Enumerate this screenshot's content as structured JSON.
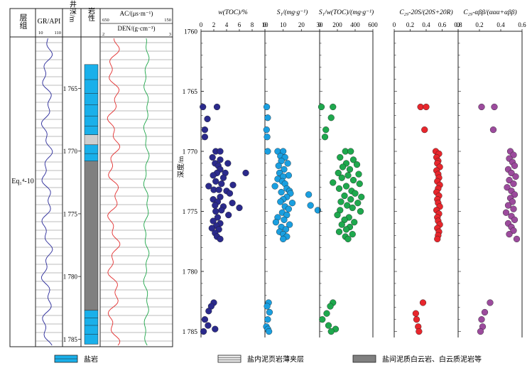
{
  "log": {
    "headers": {
      "formation": "层组",
      "gr": "GR/API",
      "gr_min": "10",
      "gr_max": "110",
      "depth": "井深/m",
      "lithology": "岩性",
      "ac": "AC/(μs·m⁻¹)",
      "ac_min": "650",
      "ac_max": "150",
      "den": "DEN/(g·cm⁻³)",
      "den_min": "2",
      "den_max": "3"
    },
    "formation_name": "Eq₁⁴-10",
    "depth_ticks": [
      "1 765",
      "1 770",
      "1 775",
      "1 780",
      "1 785"
    ]
  },
  "legend": {
    "salt": "盐岩",
    "shale": "盐内泥页岩薄夹层",
    "mudstone": "盐间泥质白云岩、白云质泥岩等"
  },
  "colors": {
    "salt": "#1ab0ea",
    "mudstone": "#808080",
    "gr_curve": "#2a2a9a",
    "ac_curve": "#e33030",
    "den_curve": "#1fa64a",
    "toc": "#2b2a8c",
    "s1": "#1a9fe0",
    "oi": "#1ea84d",
    "c29s": "#e8262c",
    "c29b": "#9c4b9d"
  },
  "chart_data": {
    "type": "scatter",
    "ylabel": "深度/m",
    "y_ticks": [
      "1760",
      "1 765",
      "1 770",
      "1 775",
      "1 780",
      "1 785"
    ],
    "ylim": [
      1760,
      1785.5
    ],
    "y_inverted": true,
    "panels": [
      {
        "key": "toc",
        "title": "w(TOC)/%",
        "xlim": [
          0,
          10
        ],
        "x_ticks": [
          "0",
          "2",
          "4",
          "6",
          "8",
          "10"
        ],
        "points": [
          [
            0.3,
            1766.3
          ],
          [
            2.5,
            1766.3
          ],
          [
            1.0,
            1767.3
          ],
          [
            0.6,
            1768.2
          ],
          [
            0.6,
            1768.8
          ],
          [
            2.3,
            1770.0
          ],
          [
            3.0,
            1770.0
          ],
          [
            1.8,
            1770.5
          ],
          [
            3.0,
            1770.7
          ],
          [
            2.2,
            1771.0
          ],
          [
            4.2,
            1771.0
          ],
          [
            2.7,
            1771.2
          ],
          [
            3.0,
            1771.5
          ],
          [
            2.5,
            1771.8
          ],
          [
            7.0,
            1771.8
          ],
          [
            3.8,
            1771.8
          ],
          [
            1.9,
            1772.0
          ],
          [
            3.5,
            1772.2
          ],
          [
            2.3,
            1772.5
          ],
          [
            3.2,
            1772.7
          ],
          [
            5.0,
            1772.8
          ],
          [
            1.2,
            1772.9
          ],
          [
            2.0,
            1773.2
          ],
          [
            2.8,
            1773.2
          ],
          [
            4.0,
            1773.3
          ],
          [
            4.5,
            1773.5
          ],
          [
            3.0,
            1773.8
          ],
          [
            1.9,
            1774.0
          ],
          [
            2.6,
            1774.2
          ],
          [
            4.9,
            1774.3
          ],
          [
            2.2,
            1774.5
          ],
          [
            3.5,
            1774.6
          ],
          [
            6.0,
            1774.7
          ],
          [
            3.2,
            1774.9
          ],
          [
            2.3,
            1775.0
          ],
          [
            4.3,
            1775.3
          ],
          [
            2.6,
            1775.5
          ],
          [
            1.9,
            1775.8
          ],
          [
            3.0,
            1776.0
          ],
          [
            2.4,
            1776.2
          ],
          [
            1.7,
            1776.4
          ],
          [
            2.8,
            1776.5
          ],
          [
            2.2,
            1776.8
          ],
          [
            2.5,
            1777.1
          ],
          [
            3.0,
            1777.3
          ],
          [
            2.0,
            1782.6
          ],
          [
            1.6,
            1782.9
          ],
          [
            1.2,
            1783.3
          ],
          [
            0.6,
            1784.0
          ],
          [
            1.1,
            1784.5
          ],
          [
            2.2,
            1784.8
          ],
          [
            0.4,
            1785.0
          ]
        ]
      },
      {
        "key": "s1",
        "title": "S₁/(mg·g⁻¹)",
        "xlim": [
          0,
          30
        ],
        "x_ticks": [
          "0",
          "10",
          "20",
          "30"
        ],
        "points": [
          [
            1.0,
            1766.3
          ],
          [
            1.5,
            1767.2
          ],
          [
            0.9,
            1768.2
          ],
          [
            1.2,
            1768.8
          ],
          [
            7.0,
            1770.0
          ],
          [
            10.0,
            1770.0
          ],
          [
            1.5,
            1770.0
          ],
          [
            8.5,
            1770.4
          ],
          [
            11.0,
            1770.5
          ],
          [
            9.0,
            1770.8
          ],
          [
            12.5,
            1771.0
          ],
          [
            7.5,
            1771.2
          ],
          [
            10.5,
            1771.5
          ],
          [
            8.0,
            1771.8
          ],
          [
            13.0,
            1772.0
          ],
          [
            10.0,
            1772.1
          ],
          [
            7.0,
            1772.3
          ],
          [
            9.5,
            1772.5
          ],
          [
            11.0,
            1772.7
          ],
          [
            5.5,
            1772.9
          ],
          [
            12.0,
            1773.1
          ],
          [
            13.5,
            1773.3
          ],
          [
            9.0,
            1773.4
          ],
          [
            14.0,
            1773.5
          ],
          [
            24.0,
            1773.6
          ],
          [
            12.0,
            1773.8
          ],
          [
            10.0,
            1774.0
          ],
          [
            8.5,
            1774.2
          ],
          [
            15.0,
            1774.3
          ],
          [
            25.0,
            1774.5
          ],
          [
            11.0,
            1774.6
          ],
          [
            13.0,
            1774.8
          ],
          [
            29.0,
            1774.9
          ],
          [
            9.5,
            1775.1
          ],
          [
            12.0,
            1775.3
          ],
          [
            7.0,
            1775.5
          ],
          [
            10.5,
            1775.7
          ],
          [
            6.0,
            1775.9
          ],
          [
            13.5,
            1776.1
          ],
          [
            9.0,
            1776.3
          ],
          [
            11.5,
            1776.5
          ],
          [
            8.0,
            1776.7
          ],
          [
            10.0,
            1776.9
          ],
          [
            12.0,
            1777.1
          ],
          [
            10.0,
            1777.3
          ],
          [
            2.0,
            1782.6
          ],
          [
            1.2,
            1782.9
          ],
          [
            2.5,
            1783.4
          ],
          [
            1.5,
            1784.0
          ],
          [
            0.8,
            1784.6
          ],
          [
            1.6,
            1784.8
          ],
          [
            2.2,
            1785.0
          ]
        ]
      },
      {
        "key": "oi",
        "title": "S₁/w(TOC)/(mg·g⁻¹)",
        "xlim": [
          0,
          600
        ],
        "x_ticks": [
          "0",
          "200",
          "400",
          "600"
        ],
        "points": [
          [
            20,
            1766.3
          ],
          [
            150,
            1766.3
          ],
          [
            130,
            1767.2
          ],
          [
            70,
            1768.2
          ],
          [
            60,
            1768.8
          ],
          [
            290,
            1770.0
          ],
          [
            350,
            1770.0
          ],
          [
            230,
            1770.5
          ],
          [
            380,
            1770.7
          ],
          [
            300,
            1771.0
          ],
          [
            420,
            1771.1
          ],
          [
            260,
            1771.3
          ],
          [
            340,
            1771.5
          ],
          [
            210,
            1771.8
          ],
          [
            440,
            1771.9
          ],
          [
            320,
            1772.0
          ],
          [
            250,
            1772.2
          ],
          [
            380,
            1772.4
          ],
          [
            150,
            1772.6
          ],
          [
            450,
            1772.7
          ],
          [
            300,
            1772.9
          ],
          [
            220,
            1773.1
          ],
          [
            360,
            1773.3
          ],
          [
            400,
            1773.5
          ],
          [
            280,
            1773.7
          ],
          [
            470,
            1773.8
          ],
          [
            350,
            1774.0
          ],
          [
            240,
            1774.2
          ],
          [
            430,
            1774.3
          ],
          [
            310,
            1774.5
          ],
          [
            370,
            1774.7
          ],
          [
            230,
            1774.9
          ],
          [
            460,
            1775.0
          ],
          [
            200,
            1775.3
          ],
          [
            330,
            1775.5
          ],
          [
            280,
            1775.7
          ],
          [
            390,
            1775.9
          ],
          [
            250,
            1776.1
          ],
          [
            340,
            1776.3
          ],
          [
            300,
            1776.5
          ],
          [
            220,
            1776.7
          ],
          [
            370,
            1776.9
          ],
          [
            290,
            1777.1
          ],
          [
            320,
            1777.3
          ],
          [
            150,
            1782.6
          ],
          [
            120,
            1782.9
          ],
          [
            80,
            1783.5
          ],
          [
            30,
            1784.0
          ],
          [
            100,
            1784.5
          ],
          [
            180,
            1784.8
          ],
          [
            130,
            1785.0
          ]
        ]
      },
      {
        "key": "c29s",
        "title": "C₂₉-20S/(20S+20R)",
        "xlim": [
          0,
          0.8
        ],
        "x_ticks": [
          "0",
          "0.2",
          "0.4",
          "0.6",
          "0.8"
        ],
        "points": [
          [
            0.33,
            1766.3
          ],
          [
            0.4,
            1766.3
          ],
          [
            0.38,
            1768.2
          ],
          [
            0.52,
            1770.0
          ],
          [
            0.56,
            1770.2
          ],
          [
            0.53,
            1770.5
          ],
          [
            0.55,
            1770.8
          ],
          [
            0.54,
            1771.0
          ],
          [
            0.57,
            1771.3
          ],
          [
            0.53,
            1771.6
          ],
          [
            0.55,
            1771.9
          ],
          [
            0.56,
            1772.2
          ],
          [
            0.54,
            1772.5
          ],
          [
            0.57,
            1772.8
          ],
          [
            0.55,
            1773.1
          ],
          [
            0.53,
            1773.4
          ],
          [
            0.56,
            1773.7
          ],
          [
            0.54,
            1774.0
          ],
          [
            0.55,
            1774.3
          ],
          [
            0.57,
            1774.6
          ],
          [
            0.53,
            1774.9
          ],
          [
            0.56,
            1775.2
          ],
          [
            0.54,
            1775.5
          ],
          [
            0.55,
            1775.8
          ],
          [
            0.57,
            1776.1
          ],
          [
            0.54,
            1776.4
          ],
          [
            0.56,
            1776.7
          ],
          [
            0.55,
            1777.0
          ],
          [
            0.54,
            1777.3
          ],
          [
            0.36,
            1782.6
          ],
          [
            0.27,
            1783.5
          ],
          [
            0.28,
            1784.0
          ],
          [
            0.3,
            1784.6
          ],
          [
            0.31,
            1785.0
          ]
        ]
      },
      {
        "key": "c29b",
        "title": "C₂₉-αββ/(ααα+αββ)",
        "xlim": [
          0,
          0.6
        ],
        "x_ticks": [
          "0",
          "0.2",
          "0.4",
          "0.6"
        ],
        "points": [
          [
            0.22,
            1766.3
          ],
          [
            0.34,
            1766.3
          ],
          [
            0.33,
            1768.2
          ],
          [
            0.49,
            1770.0
          ],
          [
            0.52,
            1770.3
          ],
          [
            0.48,
            1770.6
          ],
          [
            0.51,
            1770.9
          ],
          [
            0.53,
            1771.2
          ],
          [
            0.47,
            1771.5
          ],
          [
            0.5,
            1771.8
          ],
          [
            0.54,
            1772.1
          ],
          [
            0.48,
            1772.4
          ],
          [
            0.52,
            1772.7
          ],
          [
            0.46,
            1773.0
          ],
          [
            0.5,
            1773.3
          ],
          [
            0.53,
            1773.6
          ],
          [
            0.49,
            1773.9
          ],
          [
            0.51,
            1774.2
          ],
          [
            0.47,
            1774.5
          ],
          [
            0.52,
            1774.8
          ],
          [
            0.45,
            1775.1
          ],
          [
            0.5,
            1775.4
          ],
          [
            0.53,
            1775.7
          ],
          [
            0.47,
            1776.0
          ],
          [
            0.5,
            1776.3
          ],
          [
            0.52,
            1776.6
          ],
          [
            0.48,
            1776.9
          ],
          [
            0.55,
            1777.3
          ],
          [
            0.3,
            1782.6
          ],
          [
            0.25,
            1783.4
          ],
          [
            0.22,
            1784.0
          ],
          [
            0.23,
            1784.6
          ],
          [
            0.21,
            1785.0
          ]
        ]
      }
    ]
  }
}
